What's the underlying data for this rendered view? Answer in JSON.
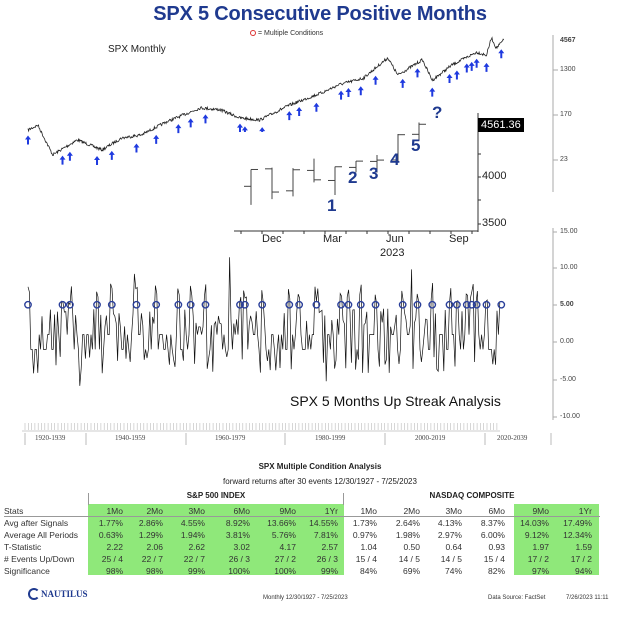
{
  "title": "SPX 5 Consecutive Positive Months",
  "legend": "= Multiple Conditions",
  "watermark": "NAUTILUS",
  "colors": {
    "title": "#1f3a8f",
    "arrow": "#1f3adf",
    "circle": "#2a3f9a",
    "green": "#8fe87a",
    "marker": "#d33"
  },
  "chart_data": [
    {
      "type": "line",
      "title": "SPX Monthly",
      "yscale": "log",
      "y_tick_labels": [
        "4567",
        "1300",
        "170",
        "23"
      ],
      "series": [
        {
          "x": [
            1927,
            1929,
            1932,
            1937,
            1942,
            1946,
            1950,
            1955,
            1962,
            1966,
            1970,
            1974,
            1980,
            1987,
            1990,
            1995,
            2000,
            2002,
            2007,
            2009,
            2013,
            2018,
            2020,
            2021,
            2022,
            2023.5
          ],
          "y": [
            86,
            107,
            28,
            55,
            35,
            60,
            69,
            123,
            234,
            214,
            148,
            135,
            263,
            479,
            661,
            891,
            2239,
            1023,
            2042,
            813,
            1622,
            2884,
            2512,
            5500,
            3467,
            5012
          ]
        }
      ],
      "signal_markers": "up-arrow"
    },
    {
      "type": "ohlc",
      "categories": [
        "Nov",
        "Dec",
        "Jan",
        "Feb",
        "Mar",
        "Apr",
        "May",
        "Jun",
        "Jul"
      ],
      "x_tick_labels": [
        "Dec",
        "Mar",
        "Jun",
        "Sep"
      ],
      "x_year_label": "2023",
      "y_tick_labels": [
        "4000",
        "3500"
      ],
      "ylim": [
        3400,
        4700
      ],
      "open": [
        3901,
        4087,
        3853,
        4070,
        3963,
        4102,
        4166,
        4181,
        4454
      ],
      "high": [
        4080,
        4100,
        4095,
        4195,
        4110,
        4170,
        4234,
        4458,
        4580
      ],
      "low": [
        3704,
        3764,
        3794,
        3943,
        3809,
        4049,
        4048,
        4166,
        4385
      ],
      "close": [
        4080,
        3840,
        4077,
        3970,
        4109,
        4169,
        4180,
        4450,
        4561
      ],
      "last_price_label": "4561.36",
      "annotations": [
        {
          "month": "Mar",
          "text": "1"
        },
        {
          "month": "Apr",
          "text": "2"
        },
        {
          "month": "May",
          "text": "3"
        },
        {
          "month": "Jun",
          "text": "4"
        },
        {
          "month": "Jul",
          "text": "5"
        },
        {
          "month": "Aug",
          "text": "?"
        }
      ]
    },
    {
      "type": "line",
      "title": "SPX  5 Months Up Streak Analysis",
      "ylim": [
        -10,
        15
      ],
      "y_tick_labels": [
        "15.00",
        "10.00",
        "5.00",
        "0.00",
        "-5.00",
        "-10.00"
      ],
      "x_tick_labels": [
        "1920-1939",
        "1940-1959",
        "1960-1979",
        "1980-1999",
        "2000-2019",
        "2020-2039"
      ],
      "signal_level": 5,
      "signal_years": [
        1927,
        1934,
        1935.5,
        1941,
        1944,
        1949,
        1953,
        1957.5,
        1960,
        1963,
        1970,
        1971,
        1974.5,
        1980,
        1982,
        1985.5,
        1990.5,
        1992,
        1994.5,
        1997.5,
        2003,
        2006,
        2009,
        2012.5,
        2014,
        2016,
        2017,
        2018,
        2020,
        2023
      ]
    }
  ],
  "table": {
    "title": "SPX Multiple Condition Analysis",
    "subtitle": "forward returns after 30 events 12/30/1927 - 7/25/2023",
    "groups": [
      "S&P 500 INDEX",
      "NASDAQ COMPOSITE"
    ],
    "columns": [
      "1Mo",
      "2Mo",
      "3Mo",
      "6Mo",
      "9Mo",
      "1Yr",
      "1Mo",
      "2Mo",
      "3Mo",
      "6Mo",
      "9Mo",
      "1Yr"
    ],
    "header_label": "Stats",
    "rows": [
      {
        "label": "Avg after Signals",
        "values": [
          "1.77%",
          "2.86%",
          "4.55%",
          "8.92%",
          "13.66%",
          "14.55%",
          "1.73%",
          "2.64%",
          "4.13%",
          "8.37%",
          "14.03%",
          "17.49%"
        ]
      },
      {
        "label": "Average All Periods",
        "values": [
          "0.63%",
          "1.29%",
          "1.94%",
          "3.81%",
          "5.76%",
          "7.81%",
          "0.97%",
          "1.98%",
          "2.97%",
          "6.00%",
          "9.12%",
          "12.34%"
        ]
      },
      {
        "label": "T-Statistic",
        "values": [
          "2.22",
          "2.06",
          "2.62",
          "3.02",
          "4.17",
          "2.57",
          "1.04",
          "0.50",
          "0.64",
          "0.93",
          "1.97",
          "1.59"
        ]
      },
      {
        "label": "# Events Up/Down",
        "values": [
          "25 / 4",
          "22 / 7",
          "22 / 7",
          "26 / 3",
          "27 / 2",
          "26 / 3",
          "15 / 4",
          "14 / 5",
          "14 / 5",
          "15 / 4",
          "17 / 2",
          "17 / 2"
        ]
      },
      {
        "label": "Significance",
        "values": [
          "98%",
          "98%",
          "99%",
          "100%",
          "100%",
          "99%",
          "84%",
          "69%",
          "74%",
          "82%",
          "97%",
          "94%"
        ]
      }
    ]
  },
  "footer": {
    "logo": "NAUTILUS",
    "period": "Monthly    12/30/1927 - 7/25/2023",
    "source": "Data Source: FactSet",
    "timestamp": "7/26/2023 11:11"
  }
}
